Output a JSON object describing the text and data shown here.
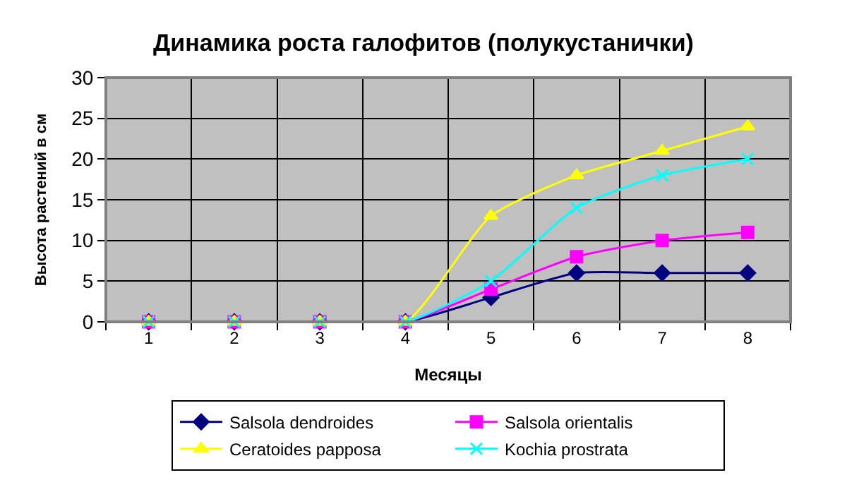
{
  "chart_data": {
    "type": "line",
    "title": "Динамика роста галофитов (полукустанички)",
    "xlabel": "Месяцы",
    "ylabel": "Высота растений в см",
    "categories": [
      "1",
      "2",
      "3",
      "4",
      "5",
      "6",
      "7",
      "8"
    ],
    "series": [
      {
        "name": "Salsola dendroides",
        "color": "#000080",
        "marker": "diamond",
        "values": [
          0,
          0,
          0,
          0,
          3,
          6,
          6,
          6
        ]
      },
      {
        "name": "Salsola orientalis",
        "color": "#ff00ff",
        "marker": "square",
        "values": [
          0,
          0,
          0,
          0,
          4,
          8,
          10,
          11
        ]
      },
      {
        "name": "Ceratoides papposa",
        "color": "#ffff00",
        "marker": "triangle",
        "values": [
          0,
          0,
          0,
          0,
          13,
          18,
          21,
          24
        ]
      },
      {
        "name": "Kochia prostrata",
        "color": "#00ffff",
        "marker": "cross",
        "values": [
          0,
          0,
          0,
          0,
          5,
          14,
          18,
          20
        ]
      }
    ],
    "ylim": [
      0,
      30
    ],
    "yticks": [
      0,
      5,
      10,
      15,
      20,
      25,
      30
    ],
    "grid": true,
    "legend": "bottom",
    "line_style": "solid"
  }
}
